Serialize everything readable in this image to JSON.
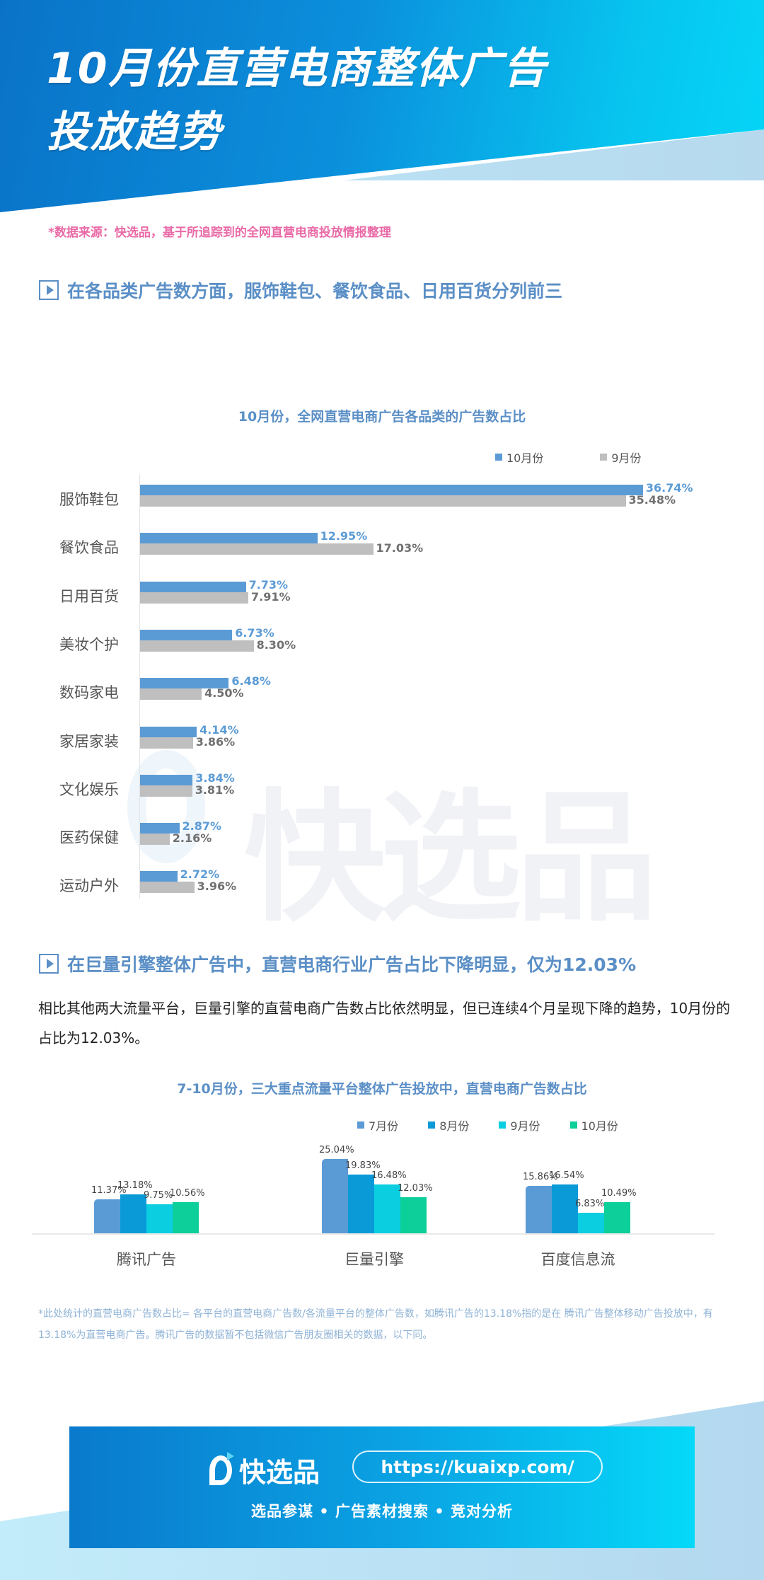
{
  "header": {
    "title_line1": "10月份直营电商整体广告",
    "title_line2": "投放趋势"
  },
  "source_note": "*数据来源：快选品，基于所追踪到的全网直营电商投放情报整理",
  "section1": {
    "icon": "play-icon",
    "heading": "在各品类广告数方面，服饰鞋包、餐饮食品、日用百货分列前三"
  },
  "section2": {
    "icon": "play-icon",
    "heading": "在巨量引擎整体广告中，直营电商行业广告占比下降明显，仅为12.03%",
    "paragraph": "相比其他两大流量平台，巨量引擎的直营电商广告数占比依然明显，但已连续4个月呈现下降的趋势，10月份的占比为12.03%。"
  },
  "watermark": "快选品",
  "footnote": "*此处统计的直营电商广告数占比= 各平台的直营电商广告数/各流量平台的整体广告数，如腾讯广告的13.18%指的是在 腾讯广告整体移动广告投放中，有13.18%为直营电商广告。腾讯广告的数据暂不包括微信广告朋友圈相关的数据，以下同。",
  "footer": {
    "brand": "快选品",
    "url": "https://kuaixp.com/",
    "tagline": "选品参谋  •  广告素材搜索  •  竞对分析"
  },
  "colors": {
    "oct": "#5b9bd5",
    "sep": "#bfbfbf",
    "jul": "#5b9bd5",
    "aug": "#0a9ad8",
    "sep2": "#0bcfe0",
    "oct2": "#0dcf9a",
    "accent": "#5b8fc6",
    "source_pink": "#e96aa6"
  },
  "chart_data": [
    {
      "type": "bar",
      "orientation": "horizontal",
      "title": "10月份，全网直营电商广告各品类的广告数占比",
      "categories": [
        "服饰鞋包",
        "餐饮食品",
        "日用百货",
        "美妆个护",
        "数码家电",
        "家居家装",
        "文化娱乐",
        "医药保健",
        "运动户外"
      ],
      "series": [
        {
          "name": "10月份",
          "values": [
            36.74,
            12.95,
            7.73,
            6.73,
            6.48,
            4.14,
            3.84,
            2.87,
            2.72
          ]
        },
        {
          "name": "9月份",
          "values": [
            35.48,
            17.03,
            7.91,
            8.3,
            4.5,
            3.86,
            3.81,
            2.16,
            3.96
          ]
        }
      ],
      "labels": {
        "10月份": [
          "36.74%",
          "12.95%",
          "7.73%",
          "6.73%",
          "6.48%",
          "4.14%",
          "3.84%",
          "2.87%",
          "2.72%"
        ],
        "9月份": [
          "35.48%",
          "17.03%",
          "7.91%",
          "8.30%",
          "4.50%",
          "3.86%",
          "3.81%",
          "2.16%",
          "3.96%"
        ]
      },
      "xlabel": "",
      "ylabel": "",
      "grid": false,
      "legend_position": "top-right",
      "legend": [
        "10月份",
        "9月份"
      ]
    },
    {
      "type": "bar",
      "title": "7-10月份，三大重点流量平台整体广告投放中，直营电商广告数占比",
      "categories": [
        "腾讯广告",
        "巨量引擎",
        "百度信息流"
      ],
      "series": [
        {
          "name": "7月份",
          "values": [
            11.37,
            25.04,
            15.86
          ]
        },
        {
          "name": "8月份",
          "values": [
            13.18,
            19.83,
            16.54
          ]
        },
        {
          "name": "9月份",
          "values": [
            9.75,
            16.48,
            6.83
          ]
        },
        {
          "name": "10月份",
          "values": [
            10.56,
            12.03,
            10.49
          ]
        }
      ],
      "labels": {
        "7月份": [
          "11.37%",
          "25.04%",
          "15.86%"
        ],
        "8月份": [
          "13.18%",
          "19.83%",
          "16.54%"
        ],
        "9月份": [
          "9.75%",
          "16.48%",
          "6.83%"
        ],
        "10月份": [
          "10.56%",
          "12.03%",
          "10.49%"
        ]
      },
      "xlabel": "",
      "ylabel": "",
      "grid": false,
      "legend_position": "top-right",
      "legend": [
        "7月份",
        "8月份",
        "9月份",
        "10月份"
      ]
    }
  ]
}
